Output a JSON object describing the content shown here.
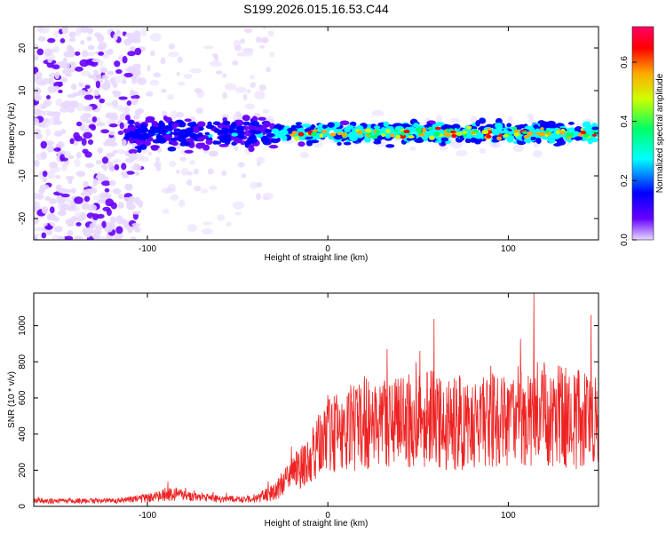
{
  "title": "S199.2026.015.16.53.C44",
  "chart_data": [
    {
      "type": "heatmap",
      "xlabel": "Height of straight line (km)",
      "ylabel": "Frequency (Hz)",
      "xlim": [
        -163,
        150
      ],
      "ylim": [
        -25,
        25
      ],
      "x_ticks": [
        -100,
        0,
        100
      ],
      "y_ticks": [
        -20,
        -10,
        0,
        10,
        20
      ],
      "colorbar": {
        "label": "Normalized spectral amplitude",
        "range": [
          0,
          0.72
        ],
        "ticks": [
          0.0,
          0.2,
          0.4,
          0.6
        ],
        "colors": [
          "#e8d8ff",
          "#6600ff",
          "#0000ff",
          "#00ffff",
          "#00ff66",
          "#ccff00",
          "#ffaa00",
          "#ff0000",
          "#ff0066"
        ]
      }
    },
    {
      "type": "line",
      "xlabel": "Height of straight line (km)",
      "ylabel": "SNR (10 * v/v)",
      "xlim": [
        -163,
        150
      ],
      "ylim": [
        0,
        1180
      ],
      "x_ticks": [
        -100,
        0,
        100
      ],
      "y_ticks": [
        0,
        200,
        400,
        600,
        800,
        1000
      ],
      "color": "#ee2222",
      "series_profile": {
        "x": [
          -163,
          -120,
          -100,
          -85,
          -80,
          -60,
          -40,
          -30,
          -10,
          0,
          20,
          40,
          60,
          80,
          100,
          120,
          150
        ],
        "mean": [
          30,
          30,
          45,
          70,
          60,
          40,
          40,
          80,
          260,
          400,
          460,
          480,
          480,
          460,
          470,
          520,
          450
        ],
        "spread": [
          15,
          15,
          25,
          40,
          30,
          20,
          20,
          50,
          140,
          220,
          260,
          260,
          280,
          260,
          260,
          300,
          280
        ]
      }
    }
  ]
}
